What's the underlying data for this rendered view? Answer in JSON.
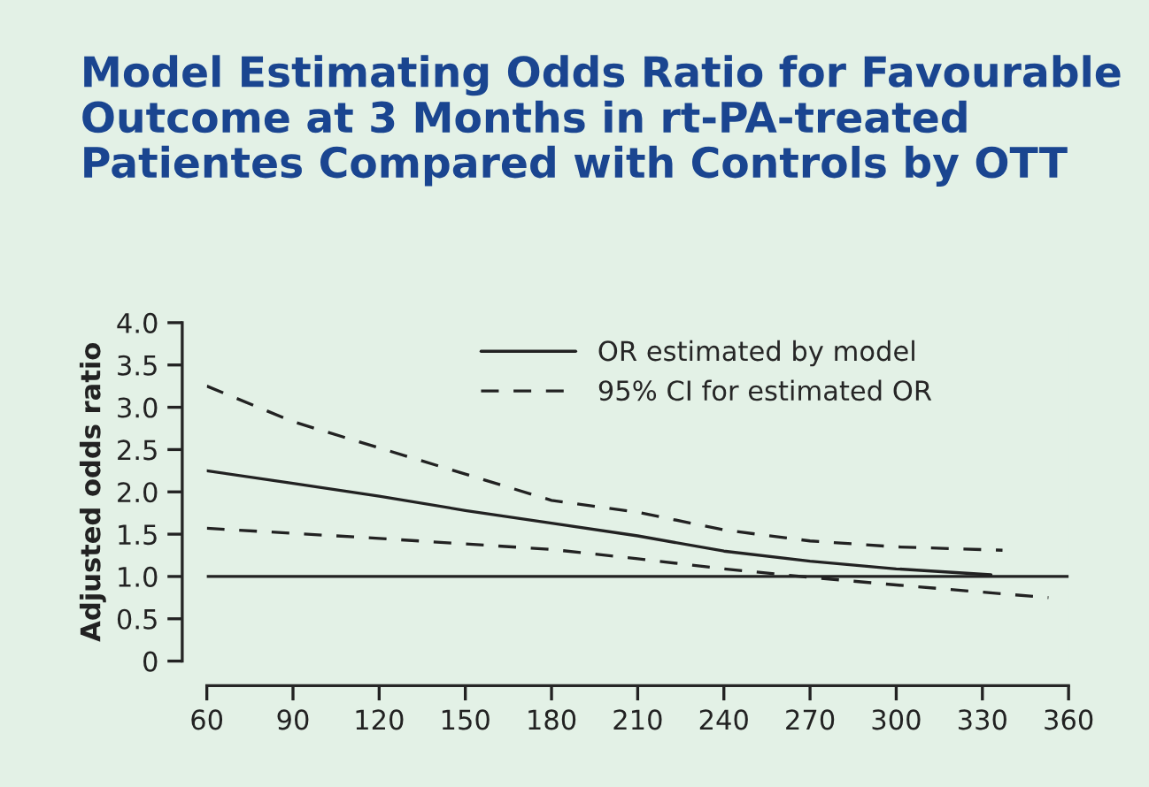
{
  "chart_data": {
    "type": "line",
    "title": "Model Estimating Odds Ratio for Favourable\nOutcome at 3 Months in rt-PA-treated\nPatientes Compared with Controls by OTT",
    "ylabel": "Adjusted odds ratio",
    "series": [
      {
        "name": "OR estimated by model",
        "color": "#222222",
        "line_style": "solid",
        "x": [
          60,
          90,
          120,
          150,
          180,
          210,
          240,
          270,
          300,
          333
        ],
        "values": [
          2.25,
          2.1,
          1.95,
          1.78,
          1.63,
          1.48,
          1.3,
          1.18,
          1.09,
          1.02
        ]
      },
      {
        "name": "95% CI for estimated OR",
        "color": "#222222",
        "line_style": "dashed",
        "x": [
          60,
          90,
          120,
          150,
          180,
          210,
          240,
          270,
          300,
          337
        ],
        "values": [
          3.25,
          2.83,
          2.52,
          2.21,
          1.9,
          1.76,
          1.55,
          1.42,
          1.35,
          1.31
        ]
      },
      {
        "color": "#222222",
        "line_style": "dashed",
        "x": [
          60,
          120,
          180,
          210,
          240,
          270,
          300,
          353
        ],
        "values": [
          1.57,
          1.45,
          1.32,
          1.21,
          1.09,
          0.99,
          0.9,
          0.75
        ]
      }
    ],
    "ref_lines": [
      {
        "axis": "y",
        "value": 1.0,
        "color": "#222222",
        "line_style": "solid"
      }
    ],
    "xlim": [
      60,
      360
    ],
    "xticks": [
      60,
      90,
      120,
      150,
      180,
      210,
      240,
      270,
      300,
      330,
      360
    ],
    "ylim": [
      0,
      4.0
    ],
    "yticks": [
      {
        "value": 0,
        "label": "0"
      },
      {
        "value": 0.5,
        "label": "0.5"
      },
      {
        "value": 1.0,
        "label": "1.0"
      },
      {
        "value": 1.5,
        "label": "1.5"
      },
      {
        "value": 2.0,
        "label": "2.0"
      },
      {
        "value": 2.5,
        "label": "2.5"
      },
      {
        "value": 3.0,
        "label": "3.0"
      },
      {
        "value": 3.5,
        "label": "3.5"
      },
      {
        "value": 4.0,
        "label": "4.0"
      }
    ],
    "grid": false,
    "legend": "top",
    "marker": "none"
  }
}
